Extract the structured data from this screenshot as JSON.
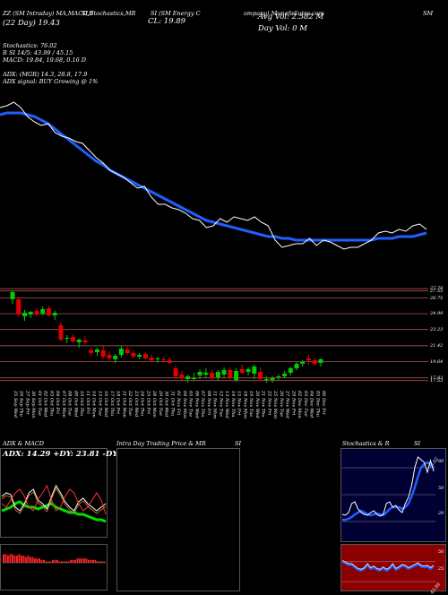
{
  "header": {
    "line1_a": "ZZ (SM Intraday) MA,MACD,B",
    "line1_b": "SI,Stochastics,MR",
    "line1_c": "SI (SM Energy C",
    "line1_d": "ompany) MunafaSutra.com",
    "line1_e": "SM",
    "line2_a": "(22 Day) 19.43",
    "line2_b": "CL: 19.89",
    "avg_vol": "Avg Vol: 2.582  M",
    "day_vol": "Day Vol: 0   M",
    "stoch": "Stochastics: 76.02",
    "si": "R          SI 14/5: 43.99 / 45.15",
    "macd": "MACD: 19.84,  19.68,  0.16  D",
    "adx": "ADX:                    (MGR) 14.3,  28.8,  17.9",
    "adx_signal": "ADX  signal:                      BUY Growing @ 1%"
  },
  "price_axis": [
    "27.78",
    "27.53",
    "26.75",
    "24.99",
    "23.23",
    "21.42",
    "19.64",
    "17.83",
    "17.53"
  ],
  "date_labels": [
    "25 Sep Wed",
    "26 Sep Thu",
    "27 Sep Fri",
    "30 Sep Mon",
    "01 Oct Tue",
    "02 Oct Wed",
    "03 Oct Thu",
    "04 Oct Fri",
    "07 Oct Mon",
    "08 Oct Tue",
    "09 Oct Wed",
    "10 Oct Thu",
    "11 Oct Fri",
    "14 Oct Mon",
    "15 Oct Tue",
    "16 Oct Wed",
    "17 Oct Thu",
    "18 Oct Fri",
    "21 Oct Mon",
    "22 Oct Tue",
    "23 Oct Wed",
    "24 Oct Thu",
    "25 Oct Fri",
    "28 Oct Mon",
    "29 Oct Tue",
    "30 Oct Wed",
    "31 Oct Thu",
    "01 Nov Fri",
    "04 Nov Mon",
    "05 Nov Tue",
    "06 Nov Wed",
    "07 Nov Thu",
    "08 Nov Fri",
    "11 Nov Mon",
    "12 Nov Tue",
    "13 Nov Wed",
    "14 Nov Thu",
    "15 Nov Fri",
    "18 Nov Mon",
    "19 Nov Tue",
    "20 Nov Wed",
    "21 Nov Thu",
    "22 Nov Fri",
    "25 Nov Mon",
    "26 Nov Tue",
    "27 Nov Wed",
    "29 Nov Fri",
    "02 Dec Mon",
    "03 Dec Tue",
    "04 Dec Wed",
    "05 Dec Thu",
    "06 Dec Fri"
  ],
  "panels": {
    "adx_title": "ADX  & MACD",
    "adx_values": "ADX: 14.29 +DY: 23.81 -DY: 17.8",
    "intraday_title": "Intra  Day Trading Price  & MR",
    "intraday_si": "SI",
    "stoch_title": "Stochastics & R",
    "stoch_si": "SI",
    "stoch_axis": [
      "80",
      "50",
      "20"
    ],
    "stoch_value": "76.02",
    "rsi_axis": [
      "50",
      "25"
    ],
    "rsi_value": "43.99"
  },
  "colors": {
    "bull": "#00cc00",
    "bear": "#e00000",
    "ma": "#1f5fff",
    "price_line": "#ffffff",
    "grid": "#b05050",
    "rsi_bg": "#8b0000",
    "stoch_bg": "#000033"
  },
  "chart_data": {
    "type": "line",
    "candles": [
      {
        "o": 26.6,
        "h": 27.6,
        "l": 26.1,
        "c": 27.4
      },
      {
        "o": 26.6,
        "h": 26.9,
        "l": 24.6,
        "c": 24.9
      },
      {
        "o": 24.7,
        "h": 25.4,
        "l": 24.2,
        "c": 25.1
      },
      {
        "o": 24.9,
        "h": 25.3,
        "l": 24.5,
        "c": 25.2
      },
      {
        "o": 25.3,
        "h": 25.6,
        "l": 24.7,
        "c": 24.9
      },
      {
        "o": 25.0,
        "h": 25.8,
        "l": 24.8,
        "c": 25.5
      },
      {
        "o": 25.6,
        "h": 25.9,
        "l": 24.7,
        "c": 24.8
      },
      {
        "o": 24.8,
        "h": 25.3,
        "l": 24.3,
        "c": 25.1
      },
      {
        "o": 23.7,
        "h": 24.0,
        "l": 21.9,
        "c": 22.1
      },
      {
        "o": 22.2,
        "h": 22.6,
        "l": 21.7,
        "c": 22.3
      },
      {
        "o": 22.4,
        "h": 22.7,
        "l": 21.7,
        "c": 21.9
      },
      {
        "o": 21.8,
        "h": 22.2,
        "l": 21.2,
        "c": 22.1
      },
      {
        "o": 22.0,
        "h": 22.5,
        "l": 21.6,
        "c": 21.8
      },
      {
        "o": 20.9,
        "h": 21.2,
        "l": 20.3,
        "c": 20.6
      },
      {
        "o": 20.7,
        "h": 21.2,
        "l": 20.3,
        "c": 21.0
      },
      {
        "o": 20.9,
        "h": 21.4,
        "l": 20.0,
        "c": 20.2
      },
      {
        "o": 20.4,
        "h": 20.8,
        "l": 19.8,
        "c": 20.0
      },
      {
        "o": 19.9,
        "h": 20.5,
        "l": 19.5,
        "c": 20.3
      },
      {
        "o": 20.4,
        "h": 21.4,
        "l": 20.1,
        "c": 21.1
      },
      {
        "o": 21.0,
        "h": 21.3,
        "l": 20.4,
        "c": 20.6
      },
      {
        "o": 20.6,
        "h": 20.9,
        "l": 20.0,
        "c": 20.2
      },
      {
        "o": 20.2,
        "h": 20.6,
        "l": 19.9,
        "c": 20.4
      },
      {
        "o": 20.5,
        "h": 20.7,
        "l": 19.9,
        "c": 20.0
      },
      {
        "o": 20.1,
        "h": 20.4,
        "l": 19.6,
        "c": 19.8
      },
      {
        "o": 19.9,
        "h": 20.2,
        "l": 19.5,
        "c": 20.0
      },
      {
        "o": 19.9,
        "h": 20.2,
        "l": 19.6,
        "c": 19.8
      },
      {
        "o": 19.8,
        "h": 20.1,
        "l": 19.3,
        "c": 19.5
      },
      {
        "o": 18.9,
        "h": 19.2,
        "l": 17.8,
        "c": 18.0
      },
      {
        "o": 18.2,
        "h": 18.6,
        "l": 17.6,
        "c": 17.8
      },
      {
        "o": 17.7,
        "h": 18.2,
        "l": 17.3,
        "c": 18.0
      },
      {
        "o": 17.8,
        "h": 18.4,
        "l": 17.5,
        "c": 17.8
      },
      {
        "o": 18.1,
        "h": 18.8,
        "l": 17.7,
        "c": 18.5
      },
      {
        "o": 18.2,
        "h": 18.9,
        "l": 17.8,
        "c": 18.4
      },
      {
        "o": 18.4,
        "h": 18.8,
        "l": 17.6,
        "c": 17.9
      },
      {
        "o": 17.9,
        "h": 18.7,
        "l": 17.5,
        "c": 18.5
      },
      {
        "o": 18.2,
        "h": 19.0,
        "l": 17.9,
        "c": 18.7
      },
      {
        "o": 18.7,
        "h": 19.0,
        "l": 17.5,
        "c": 17.8
      },
      {
        "o": 17.6,
        "h": 18.9,
        "l": 17.4,
        "c": 18.6
      },
      {
        "o": 18.8,
        "h": 19.3,
        "l": 18.2,
        "c": 18.4
      },
      {
        "o": 18.5,
        "h": 19.0,
        "l": 18.1,
        "c": 18.8
      },
      {
        "o": 18.3,
        "h": 19.3,
        "l": 17.7,
        "c": 19.1
      },
      {
        "o": 18.5,
        "h": 19.0,
        "l": 17.5,
        "c": 17.7
      },
      {
        "o": 17.6,
        "h": 18.0,
        "l": 17.3,
        "c": 17.7
      },
      {
        "o": 17.6,
        "h": 18.0,
        "l": 17.3,
        "c": 17.8
      },
      {
        "o": 17.9,
        "h": 18.2,
        "l": 17.6,
        "c": 18.0
      },
      {
        "o": 18.0,
        "h": 18.6,
        "l": 17.8,
        "c": 18.3
      },
      {
        "o": 18.4,
        "h": 19.1,
        "l": 18.1,
        "c": 18.9
      },
      {
        "o": 18.9,
        "h": 19.6,
        "l": 18.7,
        "c": 19.4
      },
      {
        "o": 19.4,
        "h": 19.8,
        "l": 19.1,
        "c": 19.6
      },
      {
        "o": 20.0,
        "h": 20.4,
        "l": 19.3,
        "c": 19.8
      },
      {
        "o": 19.8,
        "h": 20.1,
        "l": 19.2,
        "c": 19.4
      },
      {
        "o": 19.5,
        "h": 20.0,
        "l": 19.1,
        "c": 19.9
      }
    ],
    "price_line": [
      26.0,
      26.1,
      26.3,
      26.0,
      25.5,
      25.2,
      25.0,
      25.1,
      24.6,
      24.4,
      24.3,
      24.1,
      24.0,
      23.6,
      23.2,
      22.9,
      22.5,
      22.3,
      22.1,
      21.8,
      21.5,
      21.6,
      21.0,
      20.6,
      20.6,
      20.4,
      20.3,
      20.1,
      19.8,
      19.7,
      19.3,
      19.4,
      19.8,
      19.6,
      19.9,
      19.8,
      19.7,
      19.9,
      19.6,
      19.4,
      18.6,
      18.2,
      18.3,
      18.4,
      18.4,
      18.7,
      18.3,
      18.6,
      18.5,
      18.3,
      18.1,
      18.2,
      18.2,
      18.4,
      18.6,
      19.0,
      19.1,
      19.0,
      19.2,
      19.1,
      19.4,
      19.5,
      19.2
    ],
    "ma_line": [
      25.6,
      25.7,
      25.7,
      25.7,
      25.6,
      25.5,
      25.3,
      25.1,
      24.8,
      24.5,
      24.2,
      23.9,
      23.6,
      23.3,
      23.0,
      22.8,
      22.5,
      22.3,
      22.1,
      21.9,
      21.7,
      21.5,
      21.3,
      21.1,
      20.9,
      20.7,
      20.5,
      20.3,
      20.1,
      19.9,
      19.7,
      19.6,
      19.5,
      19.4,
      19.3,
      19.2,
      19.1,
      19.0,
      18.9,
      18.8,
      18.8,
      18.7,
      18.7,
      18.6,
      18.6,
      18.6,
      18.6,
      18.6,
      18.6,
      18.6,
      18.6,
      18.6,
      18.6,
      18.6,
      18.6,
      18.7,
      18.7,
      18.7,
      18.8,
      18.8,
      18.8,
      18.9,
      19.0
    ],
    "ylim_top": [
      17.0,
      27.0
    ],
    "ylim_candles": [
      17.0,
      27.8
    ],
    "stoch_line": [
      28,
      27,
      30,
      40,
      42,
      34,
      30,
      28,
      27,
      30,
      32,
      28,
      26,
      28,
      40,
      42,
      36,
      38,
      33,
      30,
      40,
      47,
      60,
      80,
      92,
      89,
      86,
      75,
      88,
      76
    ],
    "stoch_signal": [
      22,
      22,
      23,
      25,
      28,
      30,
      32,
      30,
      28,
      27,
      28,
      29,
      28,
      27,
      30,
      34,
      36,
      36,
      36,
      34,
      36,
      40,
      48,
      58,
      70,
      80,
      84,
      86,
      84,
      80
    ],
    "rsi_line": [
      50,
      48,
      46,
      46,
      43,
      40,
      39,
      41,
      46,
      41,
      43,
      40,
      39,
      42,
      39,
      41,
      46,
      40,
      42,
      45,
      44,
      41,
      43,
      45,
      47,
      44,
      43,
      44,
      41,
      44
    ],
    "adx_series": [
      {
        "name": "ADX",
        "values": [
          20,
          21,
          22,
          24,
          25,
          23,
          22,
          22,
          21,
          22,
          23,
          24,
          22,
          21,
          20,
          19,
          19,
          18,
          18,
          17,
          16,
          15,
          15,
          14
        ]
      },
      {
        "name": "+DY",
        "values": [
          28,
          30,
          29,
          22,
          20,
          24,
          30,
          32,
          26,
          24,
          21,
          28,
          34,
          30,
          25,
          22,
          20,
          25,
          27,
          24,
          22,
          20,
          22,
          24
        ]
      },
      {
        "name": "-DY",
        "values": [
          24,
          22,
          26,
          30,
          32,
          28,
          22,
          20,
          26,
          30,
          34,
          26,
          20,
          22,
          28,
          32,
          30,
          24,
          20,
          22,
          26,
          30,
          26,
          18
        ]
      }
    ],
    "macd_hist": [
      6,
      6,
      5,
      6,
      6,
      5,
      5,
      6,
      5,
      5,
      4,
      5,
      4,
      4,
      3,
      3,
      3,
      2,
      2,
      1,
      1,
      1,
      2,
      2,
      2,
      1,
      1,
      1,
      1,
      1,
      2,
      2,
      2,
      3,
      3,
      3,
      3,
      3,
      2,
      2,
      2,
      2,
      1,
      1,
      1,
      1
    ]
  }
}
